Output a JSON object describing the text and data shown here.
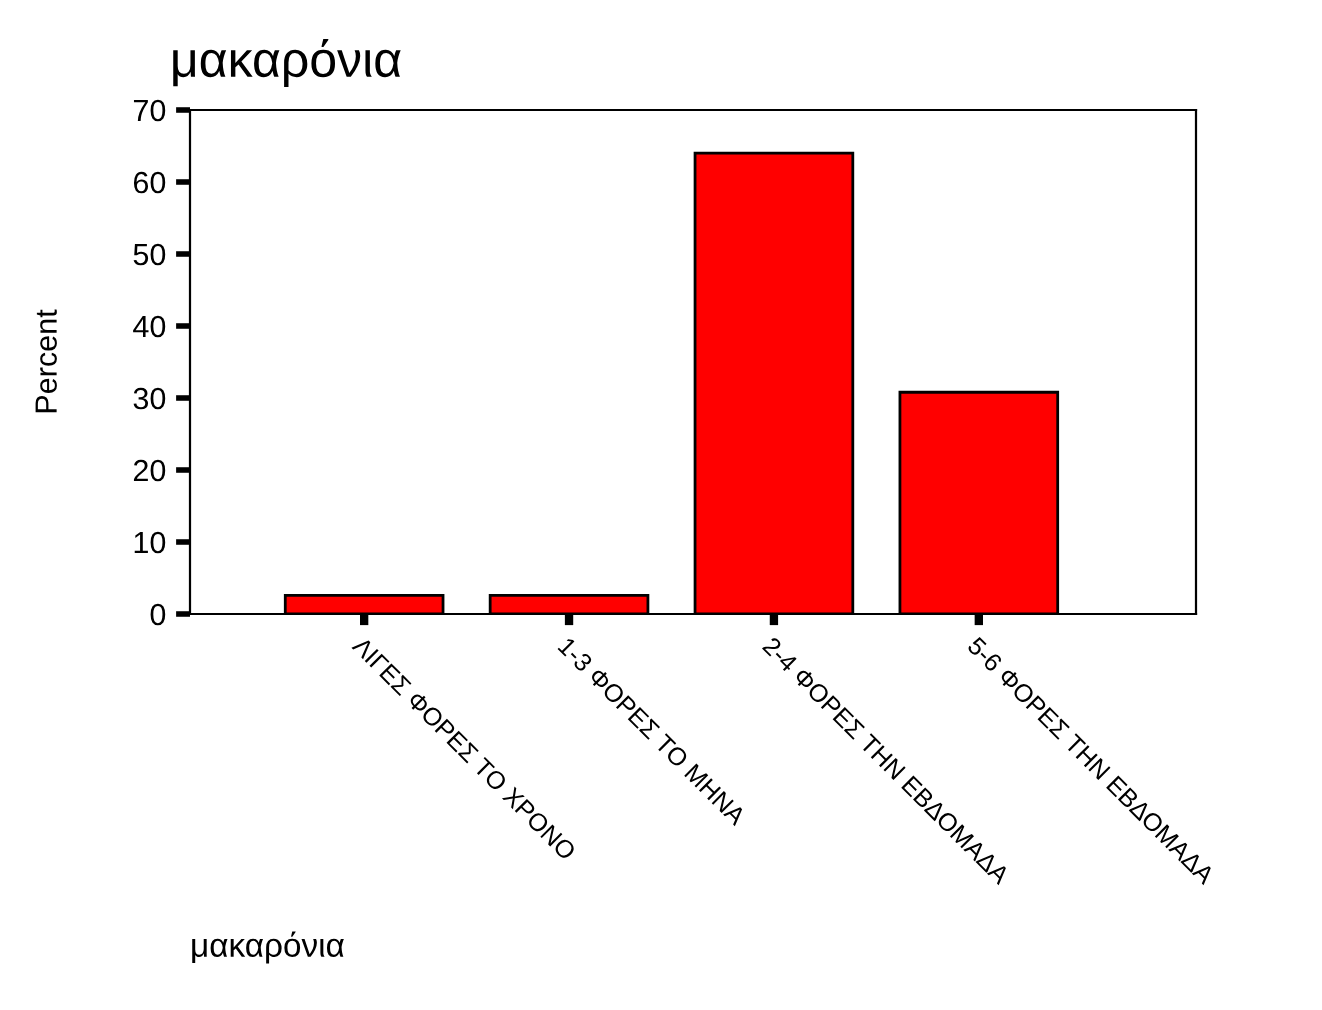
{
  "chart_data": {
    "type": "bar",
    "title": "μακαρόνια",
    "xlabel": "μακαρόνια",
    "ylabel": "Percent",
    "categories": [
      "ΛΙΓΕΣ ΦΟΡΕΣ ΤΟ ΧΡΟΝΟ",
      "1-3 ΦΟΡΕΣ ΤΟ ΜΗΝΑ",
      "2-4 ΦΟΡΕΣ ΤΗΝ ΕΒΔΟΜΑΔΑ",
      "5-6 ΦΟΡΕΣ ΤΗΝ ΕΒΔΟΜΑΔΑ"
    ],
    "values": [
      2.6,
      2.6,
      64.0,
      30.8
    ],
    "color": "#ff0000",
    "ylim": [
      0,
      70
    ],
    "yticks": [
      0,
      10,
      20,
      30,
      40,
      50,
      60,
      70
    ],
    "grid": false
  }
}
